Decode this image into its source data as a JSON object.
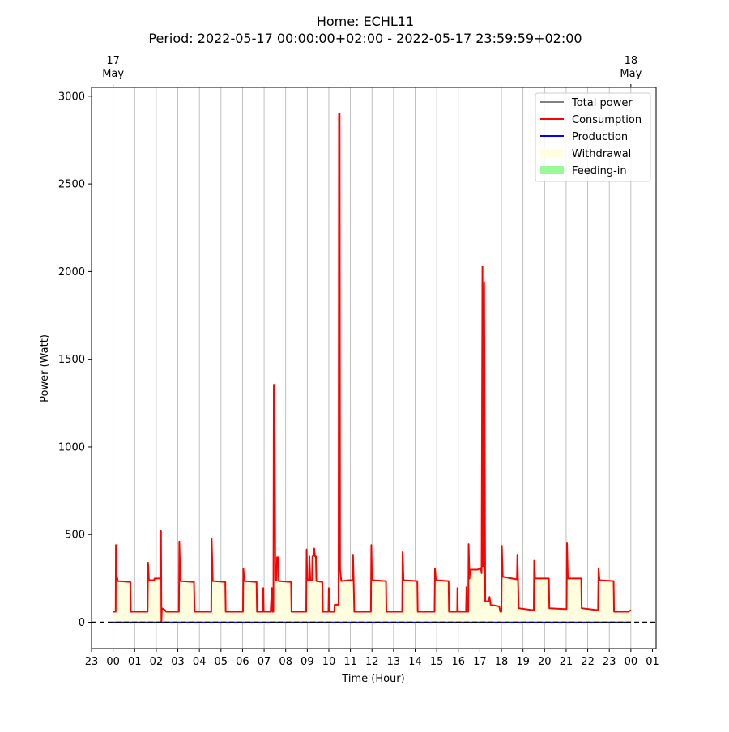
{
  "chart_data": {
    "type": "line",
    "title": "Home: ECHL11",
    "subtitle": "Period: 2022-05-17 00:00:00+02:00 - 2022-05-17 23:59:59+02:00",
    "xlabel": "Time (Hour)",
    "ylabel": "Power (Watt)",
    "xlim": [
      "2022-05-16 23:00",
      "2022-05-18 01:10"
    ],
    "ylim": [
      -150,
      3050
    ],
    "y_ticks": [
      0,
      500,
      1000,
      1500,
      2000,
      2500,
      3000
    ],
    "x_ticks": [
      "23",
      "00",
      "01",
      "02",
      "03",
      "04",
      "05",
      "06",
      "07",
      "08",
      "09",
      "10",
      "11",
      "12",
      "13",
      "14",
      "15",
      "16",
      "17",
      "18",
      "19",
      "20",
      "21",
      "22",
      "23",
      "00",
      "01"
    ],
    "top_ticks": [
      {
        "time": "2022-05-17 00:00",
        "day": "17",
        "month": "May"
      },
      {
        "time": "2022-05-18 00:00",
        "day": "18",
        "month": "May"
      }
    ],
    "grid": "vertical lines at each hour",
    "zero_line": "black dashed",
    "legend_position": "top-right",
    "legend": [
      {
        "label": "Total power",
        "color": "#808080",
        "kind": "line"
      },
      {
        "label": "Consumption",
        "color": "#ff0000",
        "kind": "line"
      },
      {
        "label": "Production",
        "color": "#0000ff",
        "kind": "line"
      },
      {
        "label": "Withdrawal",
        "color": "#ffffe0",
        "kind": "patch"
      },
      {
        "label": "Feeding-in",
        "color": "#98fb98",
        "kind": "patch"
      }
    ],
    "series": [
      {
        "name": "Consumption",
        "color": "#ff0000",
        "x_unit": "hours since 2022-05-17 00:00",
        "points": [
          [
            0.0,
            60
          ],
          [
            0.12,
            60
          ],
          [
            0.13,
            440
          ],
          [
            0.16,
            270
          ],
          [
            0.22,
            235
          ],
          [
            0.8,
            230
          ],
          [
            0.82,
            60
          ],
          [
            1.6,
            60
          ],
          [
            1.62,
            340
          ],
          [
            1.66,
            240
          ],
          [
            1.9,
            240
          ],
          [
            1.92,
            250
          ],
          [
            2.2,
            250
          ],
          [
            2.22,
            520
          ],
          [
            2.24,
            0
          ],
          [
            2.26,
            80
          ],
          [
            2.4,
            70
          ],
          [
            2.46,
            60
          ],
          [
            3.05,
            60
          ],
          [
            3.07,
            460
          ],
          [
            3.12,
            235
          ],
          [
            3.75,
            230
          ],
          [
            3.78,
            60
          ],
          [
            4.55,
            60
          ],
          [
            4.57,
            475
          ],
          [
            4.62,
            235
          ],
          [
            5.2,
            230
          ],
          [
            5.22,
            60
          ],
          [
            6.02,
            60
          ],
          [
            6.04,
            305
          ],
          [
            6.08,
            235
          ],
          [
            6.65,
            230
          ],
          [
            6.67,
            60
          ],
          [
            6.95,
            60
          ],
          [
            6.96,
            195
          ],
          [
            6.98,
            60
          ],
          [
            7.3,
            60
          ],
          [
            7.36,
            195
          ],
          [
            7.38,
            60
          ],
          [
            7.43,
            60
          ],
          [
            7.45,
            1355
          ],
          [
            7.48,
            1340
          ],
          [
            7.52,
            240
          ],
          [
            7.58,
            240
          ],
          [
            7.6,
            370
          ],
          [
            7.66,
            370
          ],
          [
            7.68,
            235
          ],
          [
            8.25,
            230
          ],
          [
            8.27,
            60
          ],
          [
            8.95,
            60
          ],
          [
            8.97,
            415
          ],
          [
            9.0,
            240
          ],
          [
            9.08,
            240
          ],
          [
            9.1,
            375
          ],
          [
            9.14,
            240
          ],
          [
            9.22,
            240
          ],
          [
            9.24,
            375
          ],
          [
            9.3,
            380
          ],
          [
            9.32,
            420
          ],
          [
            9.36,
            375
          ],
          [
            9.4,
            375
          ],
          [
            9.42,
            235
          ],
          [
            9.7,
            230
          ],
          [
            9.72,
            60
          ],
          [
            9.98,
            60
          ],
          [
            10.0,
            195
          ],
          [
            10.02,
            60
          ],
          [
            10.25,
            60
          ],
          [
            10.27,
            100
          ],
          [
            10.38,
            100
          ],
          [
            10.45,
            100
          ],
          [
            10.47,
            2900
          ],
          [
            10.5,
            2900
          ],
          [
            10.52,
            300
          ],
          [
            10.58,
            235
          ],
          [
            10.95,
            240
          ],
          [
            11.1,
            240
          ],
          [
            11.12,
            385
          ],
          [
            11.15,
            235
          ],
          [
            11.18,
            60
          ],
          [
            11.95,
            60
          ],
          [
            11.97,
            440
          ],
          [
            12.0,
            240
          ],
          [
            12.65,
            235
          ],
          [
            12.67,
            60
          ],
          [
            13.4,
            60
          ],
          [
            13.42,
            400
          ],
          [
            13.46,
            240
          ],
          [
            14.1,
            235
          ],
          [
            14.12,
            60
          ],
          [
            14.9,
            60
          ],
          [
            14.92,
            305
          ],
          [
            14.96,
            240
          ],
          [
            15.55,
            235
          ],
          [
            15.57,
            60
          ],
          [
            15.95,
            60
          ],
          [
            15.96,
            195
          ],
          [
            15.98,
            60
          ],
          [
            16.3,
            60
          ],
          [
            16.36,
            60
          ],
          [
            16.38,
            200
          ],
          [
            16.4,
            60
          ],
          [
            16.46,
            60
          ],
          [
            16.48,
            445
          ],
          [
            16.52,
            250
          ],
          [
            16.55,
            300
          ],
          [
            16.9,
            300
          ],
          [
            17.05,
            310
          ],
          [
            17.08,
            280
          ],
          [
            17.12,
            2030
          ],
          [
            17.15,
            320
          ],
          [
            17.2,
            1940
          ],
          [
            17.25,
            120
          ],
          [
            17.4,
            120
          ],
          [
            17.45,
            145
          ],
          [
            17.5,
            100
          ],
          [
            17.9,
            90
          ],
          [
            17.95,
            60
          ],
          [
            18.0,
            60
          ],
          [
            18.02,
            435
          ],
          [
            18.06,
            260
          ],
          [
            18.72,
            245
          ],
          [
            18.74,
            385
          ],
          [
            18.77,
            240
          ],
          [
            18.8,
            80
          ],
          [
            19.4,
            70
          ],
          [
            19.5,
            70
          ],
          [
            19.52,
            355
          ],
          [
            19.56,
            250
          ],
          [
            20.2,
            250
          ],
          [
            20.22,
            80
          ],
          [
            20.95,
            75
          ],
          [
            21.02,
            75
          ],
          [
            21.04,
            455
          ],
          [
            21.08,
            250
          ],
          [
            21.7,
            250
          ],
          [
            21.72,
            80
          ],
          [
            22.4,
            70
          ],
          [
            22.48,
            70
          ],
          [
            22.5,
            305
          ],
          [
            22.55,
            240
          ],
          [
            23.2,
            235
          ],
          [
            23.22,
            60
          ],
          [
            23.9,
            60
          ],
          [
            24.0,
            70
          ]
        ]
      },
      {
        "name": "Production",
        "color": "#0000ff",
        "x_unit": "hours since 2022-05-17 00:00",
        "points": [
          [
            0.0,
            0
          ],
          [
            24.0,
            0
          ]
        ]
      }
    ]
  }
}
